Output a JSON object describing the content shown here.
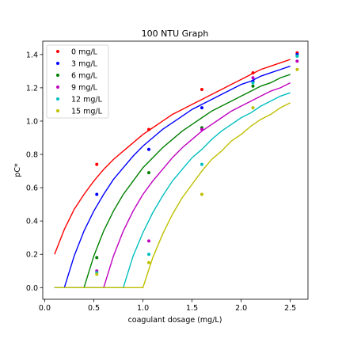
{
  "chart_data": {
    "type": "scatter",
    "title": "100 NTU Graph",
    "xlabel": "coagulant dosage (mg/L)",
    "ylabel": "pC*",
    "xlim": [
      -0.02,
      2.68
    ],
    "ylim": [
      -0.07,
      1.48
    ],
    "xticks": [
      0.0,
      0.5,
      1.0,
      1.5,
      2.0,
      2.5
    ],
    "xtick_labels": [
      "0.0",
      "0.5",
      "1.0",
      "1.5",
      "2.0",
      "2.5"
    ],
    "yticks": [
      0.0,
      0.2,
      0.4,
      0.6,
      0.8,
      1.0,
      1.2,
      1.4
    ],
    "ytick_labels": [
      "0.0",
      "0.2",
      "0.4",
      "0.6",
      "0.8",
      "1.0",
      "1.2",
      "1.4"
    ],
    "grid": false,
    "legend_position": "top-left",
    "series": [
      {
        "name": "0 mg/L",
        "color": "#ff0000",
        "points": [
          [
            0.53,
            0.74
          ],
          [
            1.06,
            0.95
          ],
          [
            1.6,
            1.19
          ],
          [
            2.12,
            1.29
          ],
          [
            2.57,
            1.41
          ]
        ],
        "curve_x": [
          0.1,
          0.2,
          0.3,
          0.4,
          0.5,
          0.6,
          0.7,
          0.8,
          0.9,
          1.0,
          1.1,
          1.2,
          1.3,
          1.4,
          1.5,
          1.6,
          1.7,
          1.8,
          1.9,
          2.0,
          2.1,
          2.2,
          2.3,
          2.4,
          2.5
        ],
        "curve_y": [
          0.2,
          0.35,
          0.47,
          0.56,
          0.64,
          0.71,
          0.77,
          0.82,
          0.87,
          0.92,
          0.96,
          1.0,
          1.04,
          1.07,
          1.1,
          1.13,
          1.16,
          1.19,
          1.22,
          1.25,
          1.28,
          1.31,
          1.33,
          1.35,
          1.37
        ]
      },
      {
        "name": "3 mg/L",
        "color": "#0000ff",
        "points": [
          [
            0.53,
            0.56
          ],
          [
            1.06,
            0.83
          ],
          [
            1.6,
            1.08
          ],
          [
            2.12,
            1.24
          ],
          [
            2.57,
            1.4
          ]
        ],
        "curve_x": [
          0.1,
          0.2,
          0.3,
          0.4,
          0.5,
          0.6,
          0.7,
          0.8,
          0.9,
          1.0,
          1.1,
          1.2,
          1.3,
          1.4,
          1.5,
          1.6,
          1.7,
          1.8,
          1.9,
          2.0,
          2.1,
          2.2,
          2.3,
          2.4,
          2.5
        ],
        "curve_y": [
          0.0,
          0.0,
          0.19,
          0.34,
          0.46,
          0.56,
          0.65,
          0.72,
          0.79,
          0.85,
          0.9,
          0.95,
          0.99,
          1.03,
          1.07,
          1.1,
          1.13,
          1.16,
          1.19,
          1.22,
          1.24,
          1.27,
          1.29,
          1.31,
          1.33
        ]
      },
      {
        "name": "6 mg/L",
        "color": "#008000",
        "points": [
          [
            0.53,
            0.18
          ],
          [
            1.06,
            0.69
          ],
          [
            1.6,
            0.96
          ],
          [
            2.12,
            1.21
          ],
          [
            2.57,
            1.39
          ]
        ],
        "curve_x": [
          0.1,
          0.4,
          0.5,
          0.6,
          0.7,
          0.8,
          0.9,
          1.0,
          1.1,
          1.2,
          1.3,
          1.4,
          1.5,
          1.6,
          1.7,
          1.8,
          1.9,
          2.0,
          2.1,
          2.2,
          2.3,
          2.4,
          2.5
        ],
        "curve_y": [
          0.0,
          0.0,
          0.19,
          0.34,
          0.46,
          0.56,
          0.64,
          0.72,
          0.78,
          0.84,
          0.89,
          0.94,
          0.98,
          1.02,
          1.06,
          1.09,
          1.12,
          1.15,
          1.18,
          1.21,
          1.23,
          1.26,
          1.28
        ]
      },
      {
        "name": "9 mg/L",
        "color": "#bf00bf",
        "points": [
          [
            0.53,
            0.1
          ],
          [
            1.06,
            0.28
          ],
          [
            1.6,
            0.95
          ],
          [
            2.12,
            1.26
          ],
          [
            2.57,
            1.36
          ]
        ],
        "curve_x": [
          0.1,
          0.6,
          0.7,
          0.8,
          0.9,
          1.0,
          1.1,
          1.2,
          1.3,
          1.4,
          1.5,
          1.6,
          1.7,
          1.8,
          1.9,
          2.0,
          2.1,
          2.2,
          2.3,
          2.4,
          2.5
        ],
        "curve_y": [
          0.0,
          0.0,
          0.19,
          0.34,
          0.46,
          0.56,
          0.64,
          0.71,
          0.78,
          0.84,
          0.89,
          0.94,
          0.98,
          1.02,
          1.06,
          1.09,
          1.12,
          1.15,
          1.18,
          1.2,
          1.23
        ]
      },
      {
        "name": "12 mg/L",
        "color": "#00bfbf",
        "points": [
          [
            0.53,
            0.09
          ],
          [
            1.06,
            0.2
          ],
          [
            1.6,
            0.74
          ],
          [
            2.12,
            1.23
          ],
          [
            2.57,
            1.39
          ]
        ],
        "curve_x": [
          0.1,
          0.8,
          0.9,
          1.0,
          1.1,
          1.2,
          1.3,
          1.4,
          1.5,
          1.6,
          1.7,
          1.8,
          1.9,
          2.0,
          2.1,
          2.2,
          2.3,
          2.4,
          2.5
        ],
        "curve_y": [
          0.0,
          0.0,
          0.19,
          0.33,
          0.45,
          0.55,
          0.64,
          0.71,
          0.78,
          0.83,
          0.89,
          0.94,
          0.98,
          1.02,
          1.05,
          1.09,
          1.12,
          1.15,
          1.17
        ]
      },
      {
        "name": "15 mg/L",
        "color": "#bfbf00",
        "points": [
          [
            0.53,
            0.08
          ],
          [
            1.06,
            0.15
          ],
          [
            1.6,
            0.56
          ],
          [
            2.12,
            1.08
          ],
          [
            2.57,
            1.31
          ]
        ],
        "curve_x": [
          0.1,
          1.0,
          1.1,
          1.2,
          1.3,
          1.4,
          1.5,
          1.6,
          1.7,
          1.8,
          1.9,
          2.0,
          2.1,
          2.2,
          2.3,
          2.4,
          2.5
        ],
        "curve_y": [
          0.0,
          0.0,
          0.18,
          0.32,
          0.44,
          0.54,
          0.62,
          0.7,
          0.77,
          0.82,
          0.88,
          0.92,
          0.97,
          1.01,
          1.04,
          1.08,
          1.11
        ]
      }
    ]
  }
}
